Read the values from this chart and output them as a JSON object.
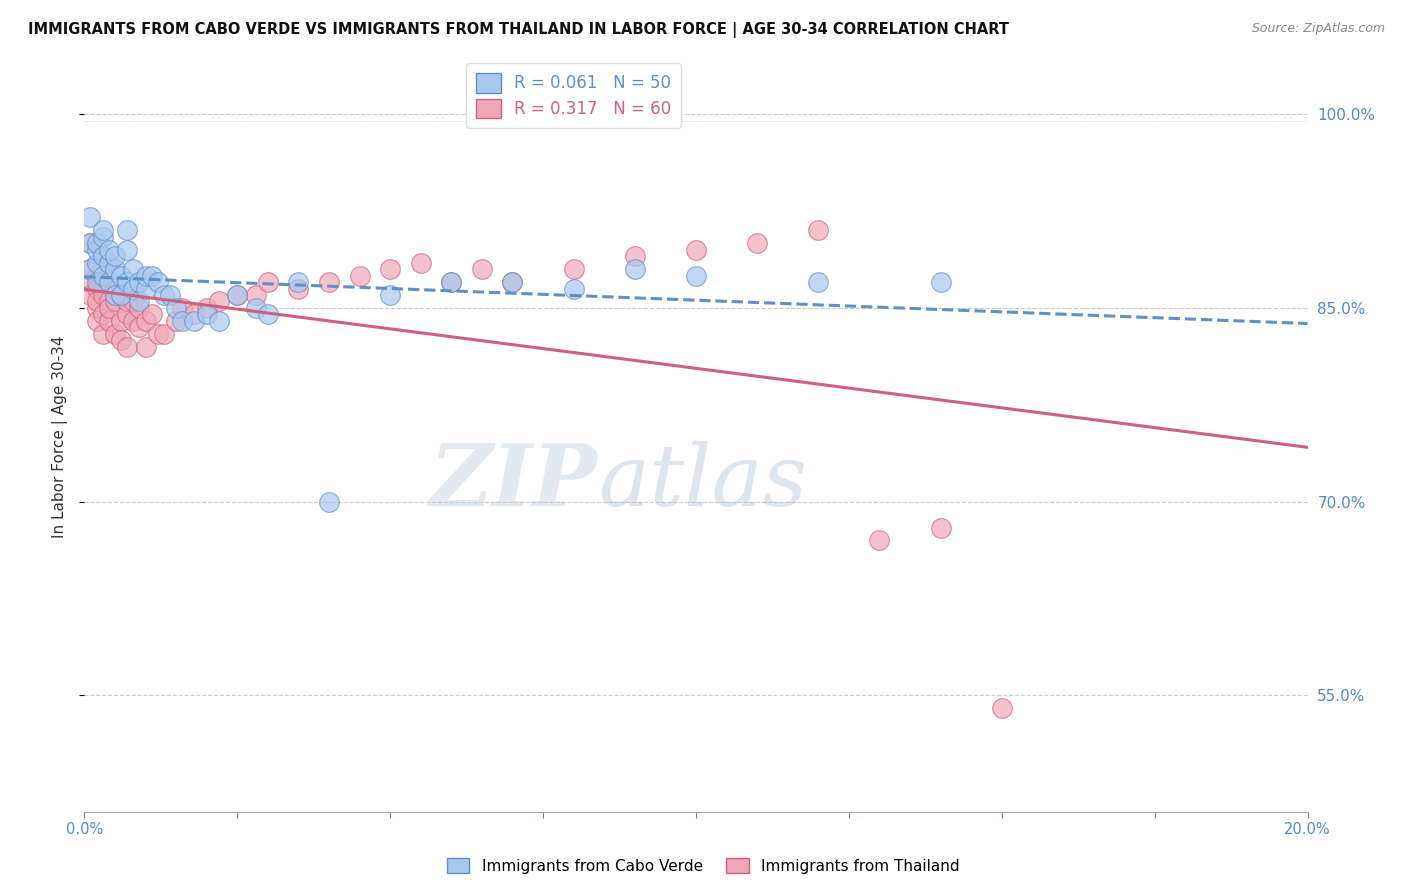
{
  "title": "IMMIGRANTS FROM CABO VERDE VS IMMIGRANTS FROM THAILAND IN LABOR FORCE | AGE 30-34 CORRELATION CHART",
  "source": "Source: ZipAtlas.com",
  "ylabel": "In Labor Force | Age 30-34",
  "legend_entries": [
    {
      "label": "Immigrants from Cabo Verde",
      "R": 0.061,
      "N": 50,
      "color": "#a8c8f0"
    },
    {
      "label": "Immigrants from Thailand",
      "R": 0.317,
      "N": 60,
      "color": "#f0a8b8"
    }
  ],
  "xmin": 0.0,
  "xmax": 0.2,
  "ymin": 0.46,
  "ymax": 1.04,
  "yticks": [
    0.55,
    0.7,
    0.85,
    1.0
  ],
  "ytick_labels": [
    "55.0%",
    "70.0%",
    "85.0%",
    "100.0%"
  ],
  "background_color": "#ffffff",
  "watermark_zip": "ZIP",
  "watermark_atlas": "atlas",
  "cabo_verde_color": "#a8c8f0",
  "thailand_color": "#f0a8b8",
  "cabo_verde_edge": "#6090c8",
  "thailand_edge": "#d06080",
  "trend_cabo_verde": "#6090c8",
  "trend_thailand": "#d06080",
  "cabo_verde_scatter_x": [
    0.001,
    0.001,
    0.001,
    0.002,
    0.002,
    0.002,
    0.002,
    0.003,
    0.003,
    0.003,
    0.003,
    0.004,
    0.004,
    0.004,
    0.005,
    0.005,
    0.005,
    0.006,
    0.006,
    0.007,
    0.007,
    0.007,
    0.008,
    0.008,
    0.009,
    0.009,
    0.01,
    0.01,
    0.011,
    0.012,
    0.013,
    0.014,
    0.015,
    0.016,
    0.018,
    0.02,
    0.022,
    0.025,
    0.028,
    0.03,
    0.035,
    0.04,
    0.05,
    0.06,
    0.07,
    0.08,
    0.09,
    0.1,
    0.12,
    0.14
  ],
  "cabo_verde_scatter_y": [
    0.9,
    0.88,
    0.92,
    0.885,
    0.895,
    0.87,
    0.9,
    0.905,
    0.91,
    0.89,
    0.875,
    0.885,
    0.87,
    0.895,
    0.88,
    0.86,
    0.89,
    0.875,
    0.86,
    0.895,
    0.87,
    0.91,
    0.865,
    0.88,
    0.87,
    0.855,
    0.865,
    0.875,
    0.875,
    0.87,
    0.86,
    0.86,
    0.85,
    0.84,
    0.84,
    0.845,
    0.84,
    0.86,
    0.85,
    0.845,
    0.87,
    0.7,
    0.86,
    0.87,
    0.87,
    0.865,
    0.88,
    0.875,
    0.87,
    0.87
  ],
  "thailand_scatter_x": [
    0.001,
    0.001,
    0.001,
    0.001,
    0.002,
    0.002,
    0.002,
    0.002,
    0.002,
    0.003,
    0.003,
    0.003,
    0.003,
    0.003,
    0.004,
    0.004,
    0.004,
    0.004,
    0.005,
    0.005,
    0.005,
    0.006,
    0.006,
    0.006,
    0.007,
    0.007,
    0.007,
    0.008,
    0.008,
    0.009,
    0.009,
    0.01,
    0.01,
    0.011,
    0.012,
    0.013,
    0.015,
    0.016,
    0.018,
    0.02,
    0.022,
    0.025,
    0.028,
    0.03,
    0.035,
    0.04,
    0.045,
    0.05,
    0.055,
    0.06,
    0.065,
    0.07,
    0.08,
    0.09,
    0.1,
    0.11,
    0.12,
    0.13,
    0.14,
    0.15
  ],
  "thailand_scatter_y": [
    0.87,
    0.86,
    0.88,
    0.9,
    0.85,
    0.875,
    0.84,
    0.865,
    0.855,
    0.88,
    0.865,
    0.845,
    0.83,
    0.86,
    0.855,
    0.84,
    0.87,
    0.85,
    0.865,
    0.83,
    0.855,
    0.84,
    0.86,
    0.825,
    0.845,
    0.855,
    0.82,
    0.84,
    0.855,
    0.835,
    0.85,
    0.84,
    0.82,
    0.845,
    0.83,
    0.83,
    0.84,
    0.85,
    0.845,
    0.85,
    0.855,
    0.86,
    0.86,
    0.87,
    0.865,
    0.87,
    0.875,
    0.88,
    0.885,
    0.87,
    0.88,
    0.87,
    0.88,
    0.89,
    0.895,
    0.9,
    0.91,
    0.67,
    0.68,
    0.54
  ]
}
